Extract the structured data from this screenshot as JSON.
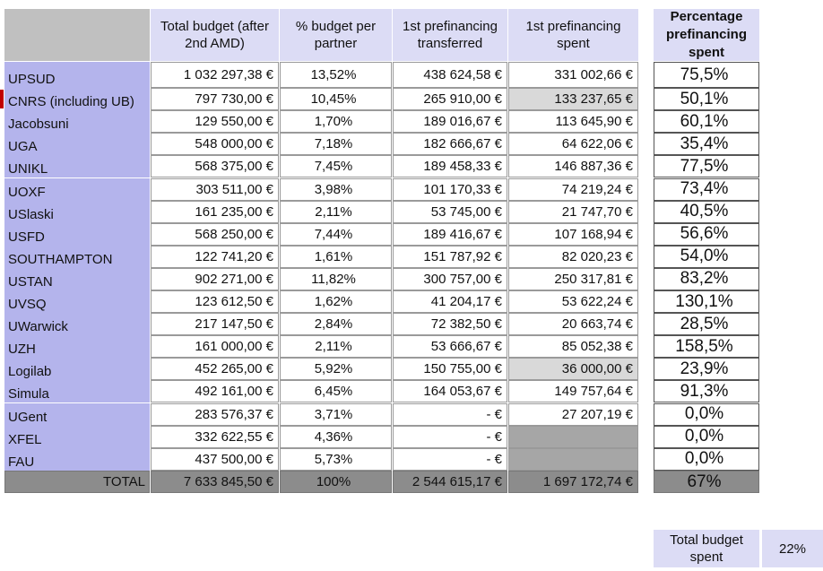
{
  "header": {
    "partner_blank": true,
    "budget": "Total budget (after 2nd AMD)",
    "share": "% budget per partner",
    "transferred": "1st prefinancing transferred",
    "spent": "1st prefinancing spent",
    "spent_pct": "Percentage prefinancing spent"
  },
  "table": {
    "rows": [
      {
        "partner": "UPSUD",
        "budget": "1 032 297,38 €",
        "share": "13,52%",
        "transferred": "438 624,58 €",
        "spent": "331 002,66 €",
        "spent_pct": "75,5%"
      },
      {
        "partner": "CNRS (including UB)",
        "budget": "797 730,00 €",
        "share": "10,45%",
        "transferred": "265 910,00 €",
        "spent": "133 237,65 €",
        "spent_pct": "50,1%",
        "spent_fill": "#d9d9d9",
        "flag_color": "#c00000"
      },
      {
        "partner": "Jacobsuni",
        "budget": "129 550,00 €",
        "share": "1,70%",
        "transferred": "189 016,67 €",
        "spent": "113 645,90 €",
        "spent_pct": "60,1%"
      },
      {
        "partner": "UGA",
        "budget": "548 000,00 €",
        "share": "7,18%",
        "transferred": "182 666,67 €",
        "spent": "64 622,06 €",
        "spent_pct": "35,4%"
      },
      {
        "partner": "UNIKL",
        "budget": "568 375,00 €",
        "share": "7,45%",
        "transferred": "189 458,33 €",
        "spent": "146 887,36 €",
        "spent_pct": "77,5%"
      },
      {
        "partner": "UOXF",
        "budget": "303 511,00 €",
        "share": "3,98%",
        "transferred": "101 170,33 €",
        "spent": "74 219,24 €",
        "spent_pct": "73,4%"
      },
      {
        "partner": "USlaski",
        "budget": "161 235,00 €",
        "share": "2,11%",
        "transferred": "53 745,00 €",
        "spent": "21 747,70 €",
        "spent_pct": "40,5%"
      },
      {
        "partner": "USFD",
        "budget": "568 250,00 €",
        "share": "7,44%",
        "transferred": "189 416,67 €",
        "spent": "107 168,94 €",
        "spent_pct": "56,6%"
      },
      {
        "partner": "SOUTHAMPTON",
        "budget": "122 741,20 €",
        "share": "1,61%",
        "transferred": "151 787,92 €",
        "spent": "82 020,23 €",
        "spent_pct": "54,0%"
      },
      {
        "partner": "USTAN",
        "budget": "902 271,00 €",
        "share": "11,82%",
        "transferred": "300 757,00 €",
        "spent": "250 317,81 €",
        "spent_pct": "83,2%"
      },
      {
        "partner": "UVSQ",
        "budget": "123 612,50 €",
        "share": "1,62%",
        "transferred": "41 204,17 €",
        "spent": "53 622,24 €",
        "spent_pct": "130,1%"
      },
      {
        "partner": "UWarwick",
        "budget": "217 147,50 €",
        "share": "2,84%",
        "transferred": "72 382,50 €",
        "spent": "20 663,74 €",
        "spent_pct": "28,5%"
      },
      {
        "partner": "UZH",
        "budget": "161 000,00 €",
        "share": "2,11%",
        "transferred": "53 666,67 €",
        "spent": "85 052,38 €",
        "spent_pct": "158,5%"
      },
      {
        "partner": "Logilab",
        "budget": "452 265,00 €",
        "share": "5,92%",
        "transferred": "150 755,00 €",
        "spent": "36 000,00 €",
        "spent_pct": "23,9%",
        "spent_fill": "#d9d9d9"
      },
      {
        "partner": "Simula",
        "budget": "492 161,00 €",
        "share": "6,45%",
        "transferred": "164 053,67 €",
        "spent": "149 757,64 €",
        "spent_pct": "91,3%"
      },
      {
        "partner": "UGent",
        "budget": "283 576,37 €",
        "share": "3,71%",
        "transferred": "-   €",
        "spent": "27 207,19 €",
        "spent_pct": "0,0%"
      },
      {
        "partner": "XFEL",
        "budget": "332 622,55 €",
        "share": "4,36%",
        "transferred": "-   €",
        "spent_pct": "0,0%",
        "spent_fill": "#a6a6a6"
      },
      {
        "partner": "FAU",
        "budget": "437 500,00 €",
        "share": "5,73%",
        "transferred": "-   €",
        "spent_pct": "0,0%",
        "spent_fill": "#a6a6a6"
      }
    ],
    "total": {
      "partner": "TOTAL",
      "budget": "7 633 845,50 €",
      "share": "100%",
      "transferred": "2 544 615,17 €",
      "spent": "1 697 172,74 €",
      "spent_pct": "67%"
    }
  },
  "summary": {
    "label": "Total budget spent",
    "value": "22%"
  }
}
